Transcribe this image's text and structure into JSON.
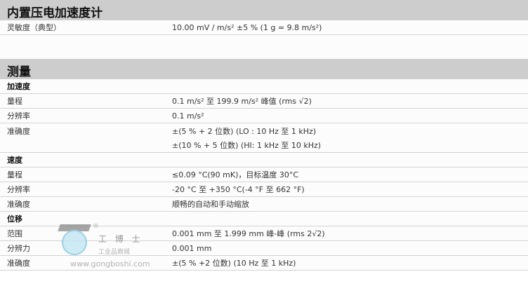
{
  "section1": {
    "title": "内置压电加速度计",
    "rows": [
      {
        "label": "灵敏度（典型）",
        "value": "10.00 mV / m/s² ±5 % (1 g = 9.8 m/s²)"
      }
    ]
  },
  "section2": {
    "title": "测量",
    "accel": {
      "title": "加速度",
      "rows": [
        {
          "label": "量程",
          "value": "0.1 m/s² 至 199.9 m/s² 峰值 (rms √2)"
        },
        {
          "label": "分辨率",
          "value": "0.1 m/s²"
        },
        {
          "label": "准确度",
          "value": "±(5 % + 2 位数) (LO : 10 Hz 至 1 kHz)"
        },
        {
          "label": "",
          "value": "±(10 % + 5 位数) (HI: 1 kHz 至 10 kHz)"
        }
      ]
    },
    "velocity": {
      "title": "速度",
      "rows": [
        {
          "label": "量程",
          "value": "≤0.09 °C(90 mK)，目标温度 30°C"
        },
        {
          "label": "分辨率",
          "value": "-20 °C 至 +350 °C(-4 °F 至 662 °F)"
        },
        {
          "label": "准确度",
          "value": "顺畅的自动和手动缩放"
        }
      ]
    },
    "displacement": {
      "title": "位移",
      "rows": [
        {
          "label": "范围",
          "value": "0.001 mm 至 1.999 mm 峰-峰 (rms 2√2)"
        },
        {
          "label": "分辨力",
          "value": "0.001 mm"
        },
        {
          "label": "准确度",
          "value": "±(5 % +2 位数) (10 Hz 至 1 kHz)"
        }
      ]
    }
  },
  "watermark": {
    "reg": "®",
    "name": "工 博 士",
    "tagline": "工业品商城",
    "url": "www.gongboshi.com"
  }
}
